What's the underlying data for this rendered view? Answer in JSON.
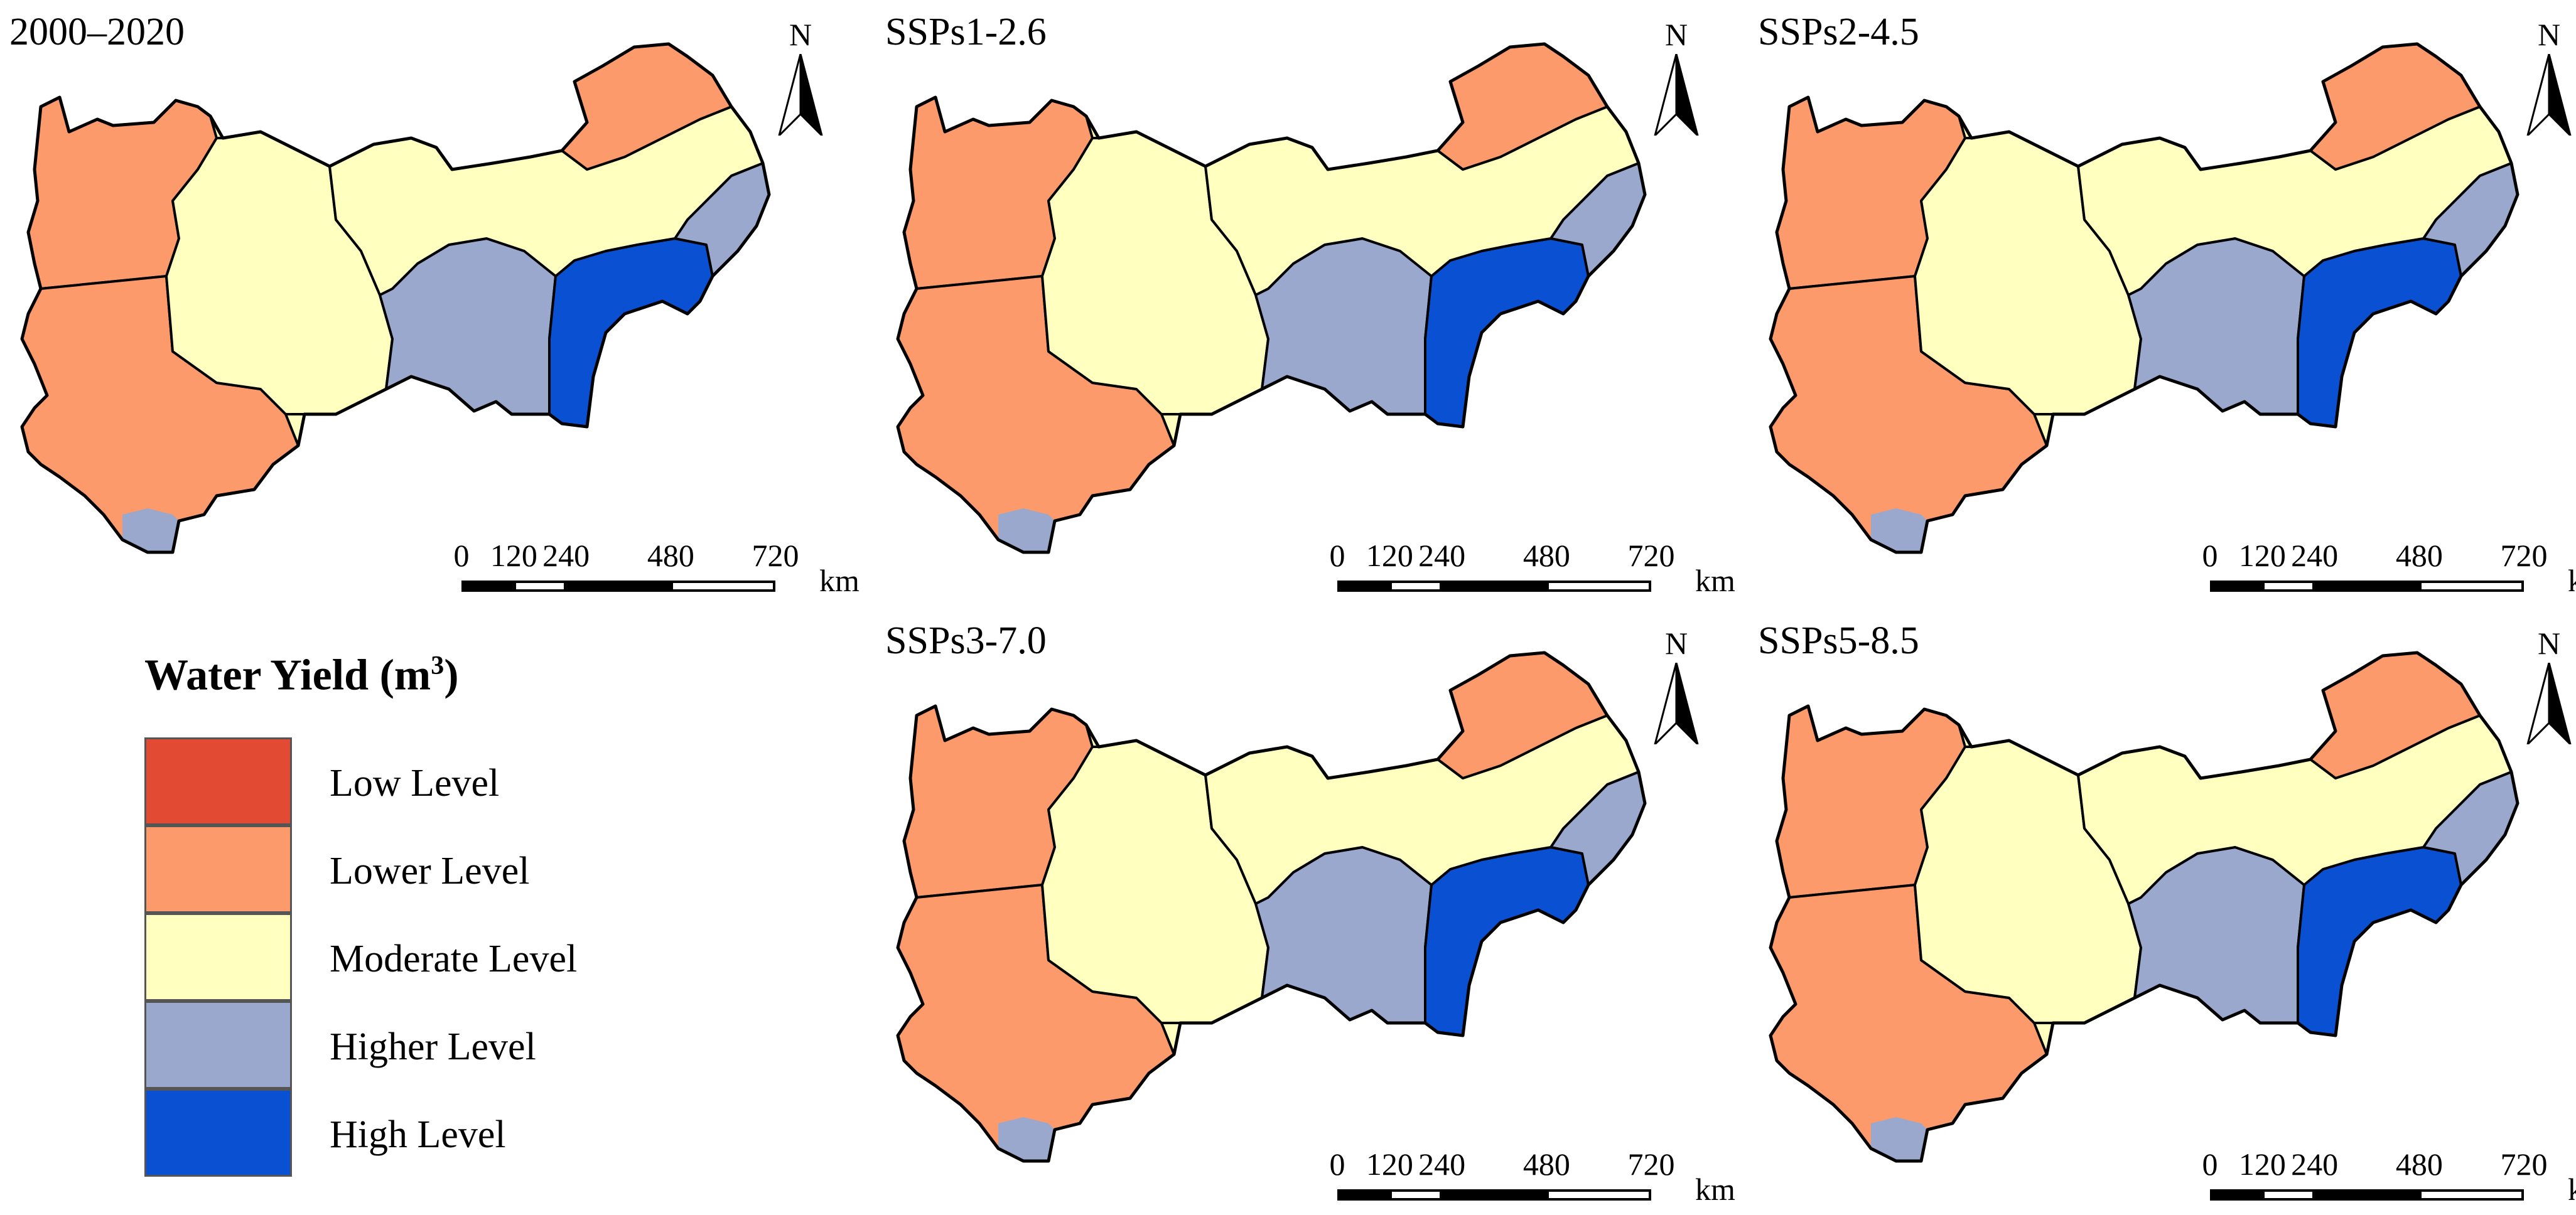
{
  "legend": {
    "title": "Water Yield (m",
    "title_superscript": "3",
    "title_close": ")",
    "items": [
      {
        "label": "Low Level",
        "color": "#e34a33"
      },
      {
        "label": "Lower Level",
        "color": "#fc9a6c"
      },
      {
        "label": "Moderate Level",
        "color": "#ffffbf"
      },
      {
        "label": "Higher Level",
        "color": "#99a8cc"
      },
      {
        "label": "High Level",
        "color": "#0a50d2"
      }
    ]
  },
  "north_label": "N",
  "scale": {
    "ticks": [
      "0",
      "120",
      "240",
      "480",
      "720"
    ],
    "tick_values": [
      0,
      120,
      240,
      480,
      720
    ],
    "unit": "km"
  },
  "panels": [
    {
      "title": "2000–2020",
      "levels": [
        "lower",
        "lower",
        "moderate",
        "higher",
        "high",
        "higher",
        "moderate",
        "lower"
      ]
    },
    {
      "title": "SSPs1-2.6",
      "levels": [
        "lower",
        "lower",
        "moderate",
        "higher",
        "high",
        "higher",
        "moderate",
        "lower"
      ]
    },
    {
      "title": "SSPs2-4.5",
      "levels": [
        "lower",
        "lower",
        "moderate",
        "higher",
        "high",
        "higher",
        "moderate",
        "lower"
      ]
    },
    {
      "title": "SSPs3-7.0",
      "levels": [
        "lower",
        "lower",
        "moderate",
        "higher",
        "high",
        "higher",
        "moderate",
        "lower"
      ]
    },
    {
      "title": "SSPs5-8.5",
      "levels": [
        "lower",
        "lower",
        "moderate",
        "higher",
        "high",
        "higher",
        "moderate",
        "lower"
      ]
    }
  ]
}
